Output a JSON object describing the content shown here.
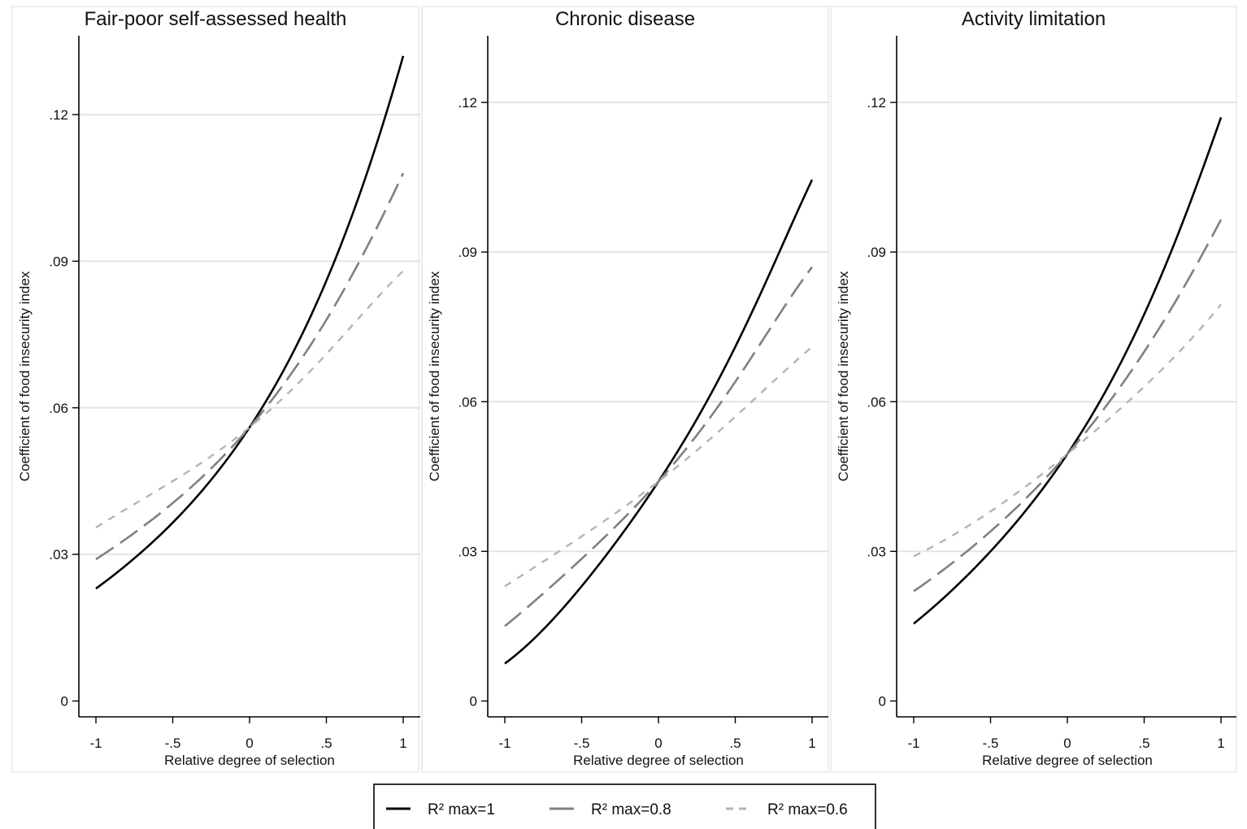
{
  "chart_data": [
    {
      "type": "line",
      "title": "Fair-poor self-assessed health",
      "xlabel": "Relative degree of selection",
      "ylabel": "Coefficient of food insecurity index",
      "xlim": [
        -1.1,
        1.1
      ],
      "ylim": [
        -0.003,
        0.136
      ],
      "xticks": [
        -1,
        -0.5,
        0,
        0.5,
        1
      ],
      "xtick_labels": [
        "-1",
        "-.5",
        "0",
        ".5",
        "1"
      ],
      "yticks": [
        0,
        0.03,
        0.06,
        0.09,
        0.12
      ],
      "ytick_labels": [
        "0",
        ".03",
        ".06",
        ".09",
        ".12"
      ],
      "grid": true,
      "x": [
        -1,
        -0.5,
        0,
        0.5,
        1
      ],
      "series": [
        {
          "name": "R² max=1",
          "values": [
            0.023,
            0.0365,
            0.056,
            0.086,
            0.132
          ]
        },
        {
          "name": "R² max=0.8",
          "values": [
            0.029,
            0.0405,
            0.056,
            0.078,
            0.108
          ]
        },
        {
          "name": "R² max=0.6",
          "values": [
            0.0355,
            0.045,
            0.056,
            0.071,
            0.088
          ]
        }
      ]
    },
    {
      "type": "line",
      "title": "Chronic disease",
      "xlabel": "Relative degree of selection",
      "ylabel": "Coefficient of food insecurity index",
      "xlim": [
        -1.1,
        1.1
      ],
      "ylim": [
        -0.003,
        0.133
      ],
      "xticks": [
        -1,
        -0.5,
        0,
        0.5,
        1
      ],
      "xtick_labels": [
        "-1",
        "-.5",
        "0",
        ".5",
        "1"
      ],
      "yticks": [
        0,
        0.03,
        0.06,
        0.09,
        0.12
      ],
      "ytick_labels": [
        "0",
        ".03",
        ".06",
        ".09",
        ".12"
      ],
      "grid": true,
      "x": [
        -1,
        -0.5,
        0,
        0.5,
        1
      ],
      "series": [
        {
          "name": "R² max=1",
          "values": [
            0.0075,
            0.023,
            0.044,
            0.071,
            0.1045
          ]
        },
        {
          "name": "R² max=0.8",
          "values": [
            0.015,
            0.0285,
            0.044,
            0.064,
            0.087
          ]
        },
        {
          "name": "R² max=0.6",
          "values": [
            0.023,
            0.033,
            0.044,
            0.057,
            0.071
          ]
        }
      ]
    },
    {
      "type": "line",
      "title": "Activity limitation",
      "xlabel": "Relative degree of selection",
      "ylabel": "Coefficient of food insecurity index",
      "xlim": [
        -1.1,
        1.1
      ],
      "ylim": [
        -0.003,
        0.133
      ],
      "xticks": [
        -1,
        -0.5,
        0,
        0.5,
        1
      ],
      "xtick_labels": [
        "-1",
        "-.5",
        "0",
        ".5",
        "1"
      ],
      "yticks": [
        0,
        0.03,
        0.06,
        0.09,
        0.12
      ],
      "ytick_labels": [
        "0",
        ".03",
        ".06",
        ".09",
        ".12"
      ],
      "grid": true,
      "x": [
        -1,
        -0.5,
        0,
        0.5,
        1
      ],
      "series": [
        {
          "name": "R² max=1",
          "values": [
            0.0155,
            0.03,
            0.0495,
            0.0775,
            0.117
          ]
        },
        {
          "name": "R² max=0.8",
          "values": [
            0.022,
            0.034,
            0.0495,
            0.07,
            0.0965
          ]
        },
        {
          "name": "R² max=0.6",
          "values": [
            0.029,
            0.038,
            0.0495,
            0.063,
            0.0795
          ]
        }
      ]
    }
  ],
  "legend": {
    "placement": "bottom-center",
    "items": [
      {
        "label": "R² max=1",
        "color": "#000000",
        "style": "solid"
      },
      {
        "label": "R² max=0.8",
        "color": "#808080",
        "style": "long-dash"
      },
      {
        "label": "R² max=0.6",
        "color": "#b4b4b4",
        "style": "short-dash"
      }
    ]
  },
  "colors": {
    "series": [
      "#000000",
      "#808080",
      "#b4b4b4"
    ],
    "grid": "#e4e4e4",
    "axis": "#000000",
    "panel_border": "#e8e8e8"
  }
}
